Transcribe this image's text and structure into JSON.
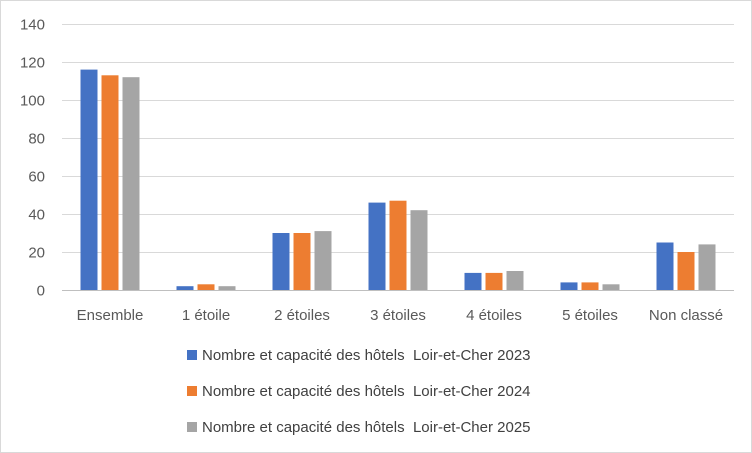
{
  "chart_data": {
    "type": "bar",
    "title": "",
    "xlabel": "",
    "ylabel": "",
    "ylim": [
      0,
      140
    ],
    "ytick_step": 20,
    "grid": true,
    "legend_position": "bottom",
    "categories": [
      "Ensemble",
      "1 étoile",
      "2 étoiles",
      "3 étoiles",
      "4 étoiles",
      "5 étoiles",
      "Non classé"
    ],
    "series": [
      {
        "name": "Nombre et capacité des hôtels  Loir-et-Cher 2023",
        "color": "#4472c4",
        "values": [
          116,
          2,
          30,
          46,
          9,
          4,
          25
        ]
      },
      {
        "name": "Nombre et capacité des hôtels  Loir-et-Cher 2024",
        "color": "#ed7d31",
        "values": [
          113,
          3,
          30,
          47,
          9,
          4,
          20
        ]
      },
      {
        "name": "Nombre et capacité des hôtels  Loir-et-Cher 2025",
        "color": "#a5a5a5",
        "values": [
          112,
          2,
          31,
          42,
          10,
          3,
          24
        ]
      }
    ]
  }
}
